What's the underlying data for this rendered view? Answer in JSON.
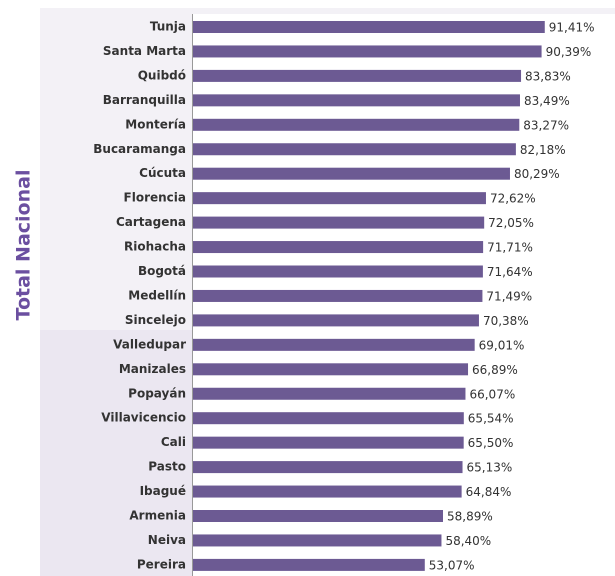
{
  "chart_data": {
    "type": "bar",
    "orientation": "horizontal",
    "y_label": "Total Nacional",
    "categories": [
      "Tunja",
      "Santa Marta",
      "Quibdó",
      "Barranquilla",
      "Montería",
      "Bucaramanga",
      "Cúcuta",
      "Florencia",
      "Cartagena",
      "Riohacha",
      "Bogotá",
      "Medellín",
      "Sincelejo",
      "Valledupar",
      "Manizales",
      "Popayán",
      "Villavicencio",
      "Cali",
      "Pasto",
      "Ibagué",
      "Armenia",
      "Neiva",
      "Pereira"
    ],
    "values": [
      91.41,
      90.39,
      83.83,
      83.49,
      83.27,
      82.18,
      80.29,
      72.62,
      72.05,
      71.71,
      71.64,
      71.49,
      70.38,
      69.01,
      66.89,
      66.07,
      65.54,
      65.5,
      65.13,
      64.84,
      58.89,
      58.4,
      53.07
    ],
    "value_labels": [
      "91,41%",
      "90,39%",
      "83,83%",
      "83,49%",
      "83,27%",
      "82,18%",
      "80,29%",
      "72,62%",
      "72,05%",
      "71,71%",
      "71,64%",
      "71,49%",
      "70,38%",
      "69,01%",
      "66,89%",
      "66,07%",
      "65,54%",
      "65,50%",
      "65,13%",
      "64,84%",
      "58,89%",
      "58,40%",
      "53,07%"
    ],
    "color": "#6c5a93",
    "xlim": [
      -21,
      95
    ]
  }
}
